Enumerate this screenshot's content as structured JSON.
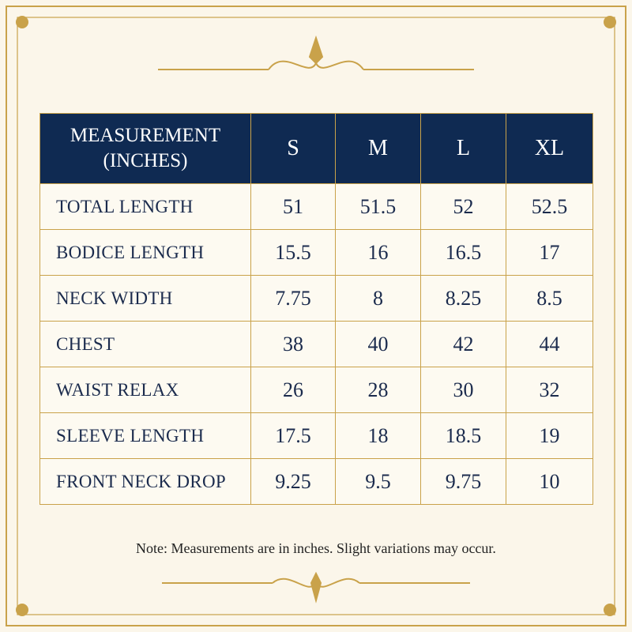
{
  "table": {
    "header": [
      "MEASUREMENT (INCHES)",
      "S",
      "M",
      "L",
      "XL"
    ],
    "rows": [
      [
        "TOTAL LENGTH",
        51,
        51.5,
        52,
        52.5
      ],
      [
        "BODICE LENGTH",
        15.5,
        16,
        16.5,
        17
      ],
      [
        "NECK WIDTH",
        7.75,
        8,
        8.25,
        8.5
      ],
      [
        "CHEST",
        38,
        40,
        42,
        44
      ],
      [
        "WAIST RELAX",
        26,
        28,
        30,
        32
      ],
      [
        "SLEEVE LENGTH",
        17.5,
        18,
        18.5,
        19
      ],
      [
        "FRONT NECK DROP",
        9.25,
        9.5,
        9.75,
        10
      ]
    ]
  },
  "note": "Note: Measurements are in inches. Slight variations may occur."
}
